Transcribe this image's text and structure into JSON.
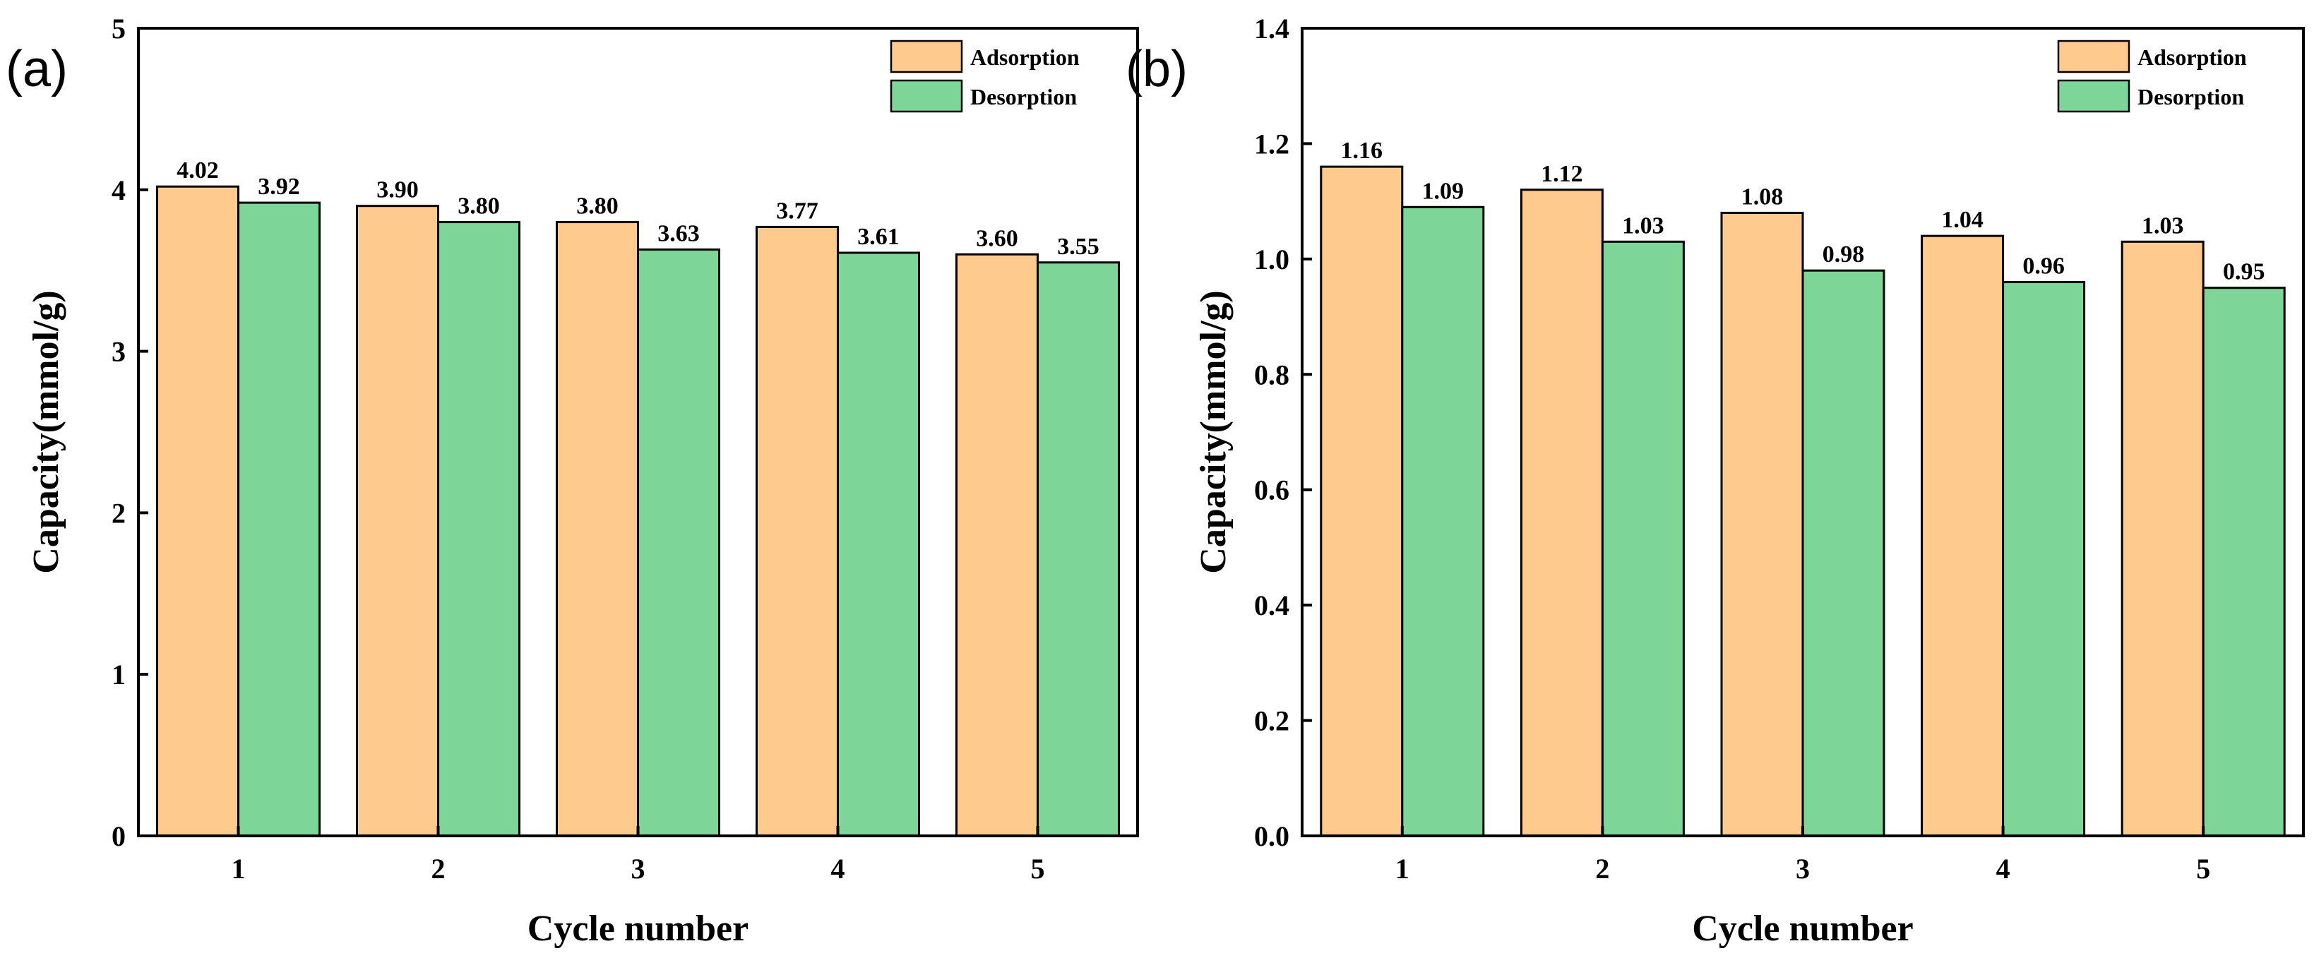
{
  "chart_data": [
    {
      "type": "bar",
      "panel_label": "(a)",
      "title": "",
      "xlabel": "Cycle number",
      "ylabel": "Capacity(mmol/g)",
      "categories": [
        "1",
        "2",
        "3",
        "4",
        "5"
      ],
      "ylim": [
        0,
        5
      ],
      "yticks": [
        0,
        1,
        2,
        3,
        4,
        5
      ],
      "ytick_labels": [
        "0",
        "1",
        "2",
        "3",
        "4",
        "5"
      ],
      "grid": false,
      "legend_position": "top-right",
      "series": [
        {
          "name": "Adsorption",
          "color": "#FECA8E",
          "values": [
            4.02,
            3.9,
            3.8,
            3.77,
            3.6
          ],
          "labels": [
            "4.02",
            "3.90",
            "3.80",
            "3.77",
            "3.60"
          ]
        },
        {
          "name": "Desorption",
          "color": "#7DD598",
          "values": [
            3.92,
            3.8,
            3.63,
            3.61,
            3.55
          ],
          "labels": [
            "3.92",
            "3.80",
            "3.63",
            "3.61",
            "3.55"
          ]
        }
      ]
    },
    {
      "type": "bar",
      "panel_label": "(b)",
      "title": "",
      "xlabel": "Cycle number",
      "ylabel": "Capacity(mmol/g)",
      "categories": [
        "1",
        "2",
        "3",
        "4",
        "5"
      ],
      "ylim": [
        0,
        1.4
      ],
      "yticks": [
        0,
        0.2,
        0.4,
        0.6,
        0.8,
        1.0,
        1.2,
        1.4
      ],
      "ytick_labels": [
        "0.0",
        "0.2",
        "0.4",
        "0.6",
        "0.8",
        "1.0",
        "1.2",
        "1.4"
      ],
      "grid": false,
      "legend_position": "top-right",
      "series": [
        {
          "name": "Adsorption",
          "color": "#FECA8E",
          "values": [
            1.16,
            1.12,
            1.08,
            1.04,
            1.03
          ],
          "labels": [
            "1.16",
            "1.12",
            "1.08",
            "1.04",
            "1.03"
          ]
        },
        {
          "name": "Desorption",
          "color": "#7DD598",
          "values": [
            1.09,
            1.03,
            0.98,
            0.96,
            0.95
          ],
          "labels": [
            "1.09",
            "1.03",
            "0.98",
            "0.96",
            "0.95"
          ]
        }
      ]
    }
  ]
}
